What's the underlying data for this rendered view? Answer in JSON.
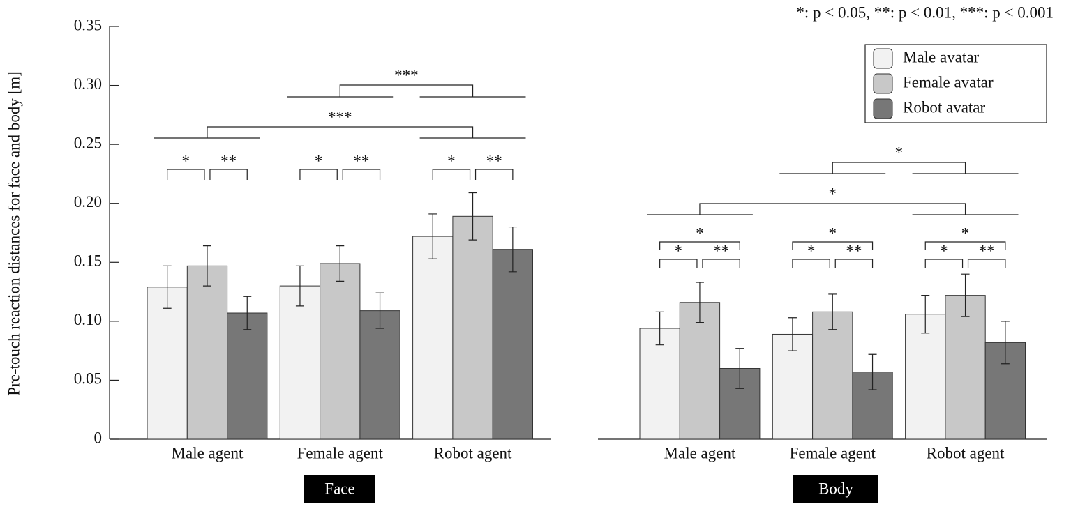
{
  "chart_data": {
    "type": "bar",
    "note": "*: p < 0.05, **: p < 0.01, ***: p < 0.001",
    "ylabel": "Pre-touch reaction distances for face and body [m]",
    "ylim": [
      0,
      0.35
    ],
    "yticks": [
      0,
      0.05,
      {
        "value": 0.1,
        "label": "0.10"
      },
      0.15,
      {
        "value": 0.2,
        "label": "0.20"
      },
      0.25,
      {
        "value": 0.3,
        "label": "0.30"
      },
      0.35
    ],
    "categories": [
      "Male agent",
      "Female agent",
      "Robot agent",
      "Male agent",
      "Female agent",
      "Robot agent"
    ],
    "series": [
      {
        "name": "Male avatar",
        "color": "#f2f2f2",
        "values": [
          0.129,
          0.13,
          0.172,
          0.094,
          0.089,
          0.106
        ],
        "errors": [
          0.018,
          0.017,
          0.019,
          0.014,
          0.014,
          0.016
        ]
      },
      {
        "name": "Female avatar",
        "color": "#c8c8c8",
        "values": [
          0.147,
          0.149,
          0.189,
          0.116,
          0.108,
          0.122
        ],
        "errors": [
          0.017,
          0.015,
          0.02,
          0.017,
          0.015,
          0.018
        ]
      },
      {
        "name": "Robot avatar",
        "color": "#777777",
        "values": [
          0.107,
          0.109,
          0.161,
          0.06,
          0.057,
          0.082
        ],
        "errors": [
          0.014,
          0.015,
          0.019,
          0.017,
          0.015,
          0.018
        ]
      }
    ],
    "panels": [
      {
        "label": "Face",
        "significance": [
          "***",
          "***",
          "*",
          "**",
          "*",
          "**",
          "*",
          "**"
        ]
      },
      {
        "label": "Body",
        "significance": [
          "*",
          "*",
          "*",
          "*",
          "**",
          "*",
          "*",
          "**",
          "*",
          "*",
          "**"
        ]
      }
    ]
  }
}
